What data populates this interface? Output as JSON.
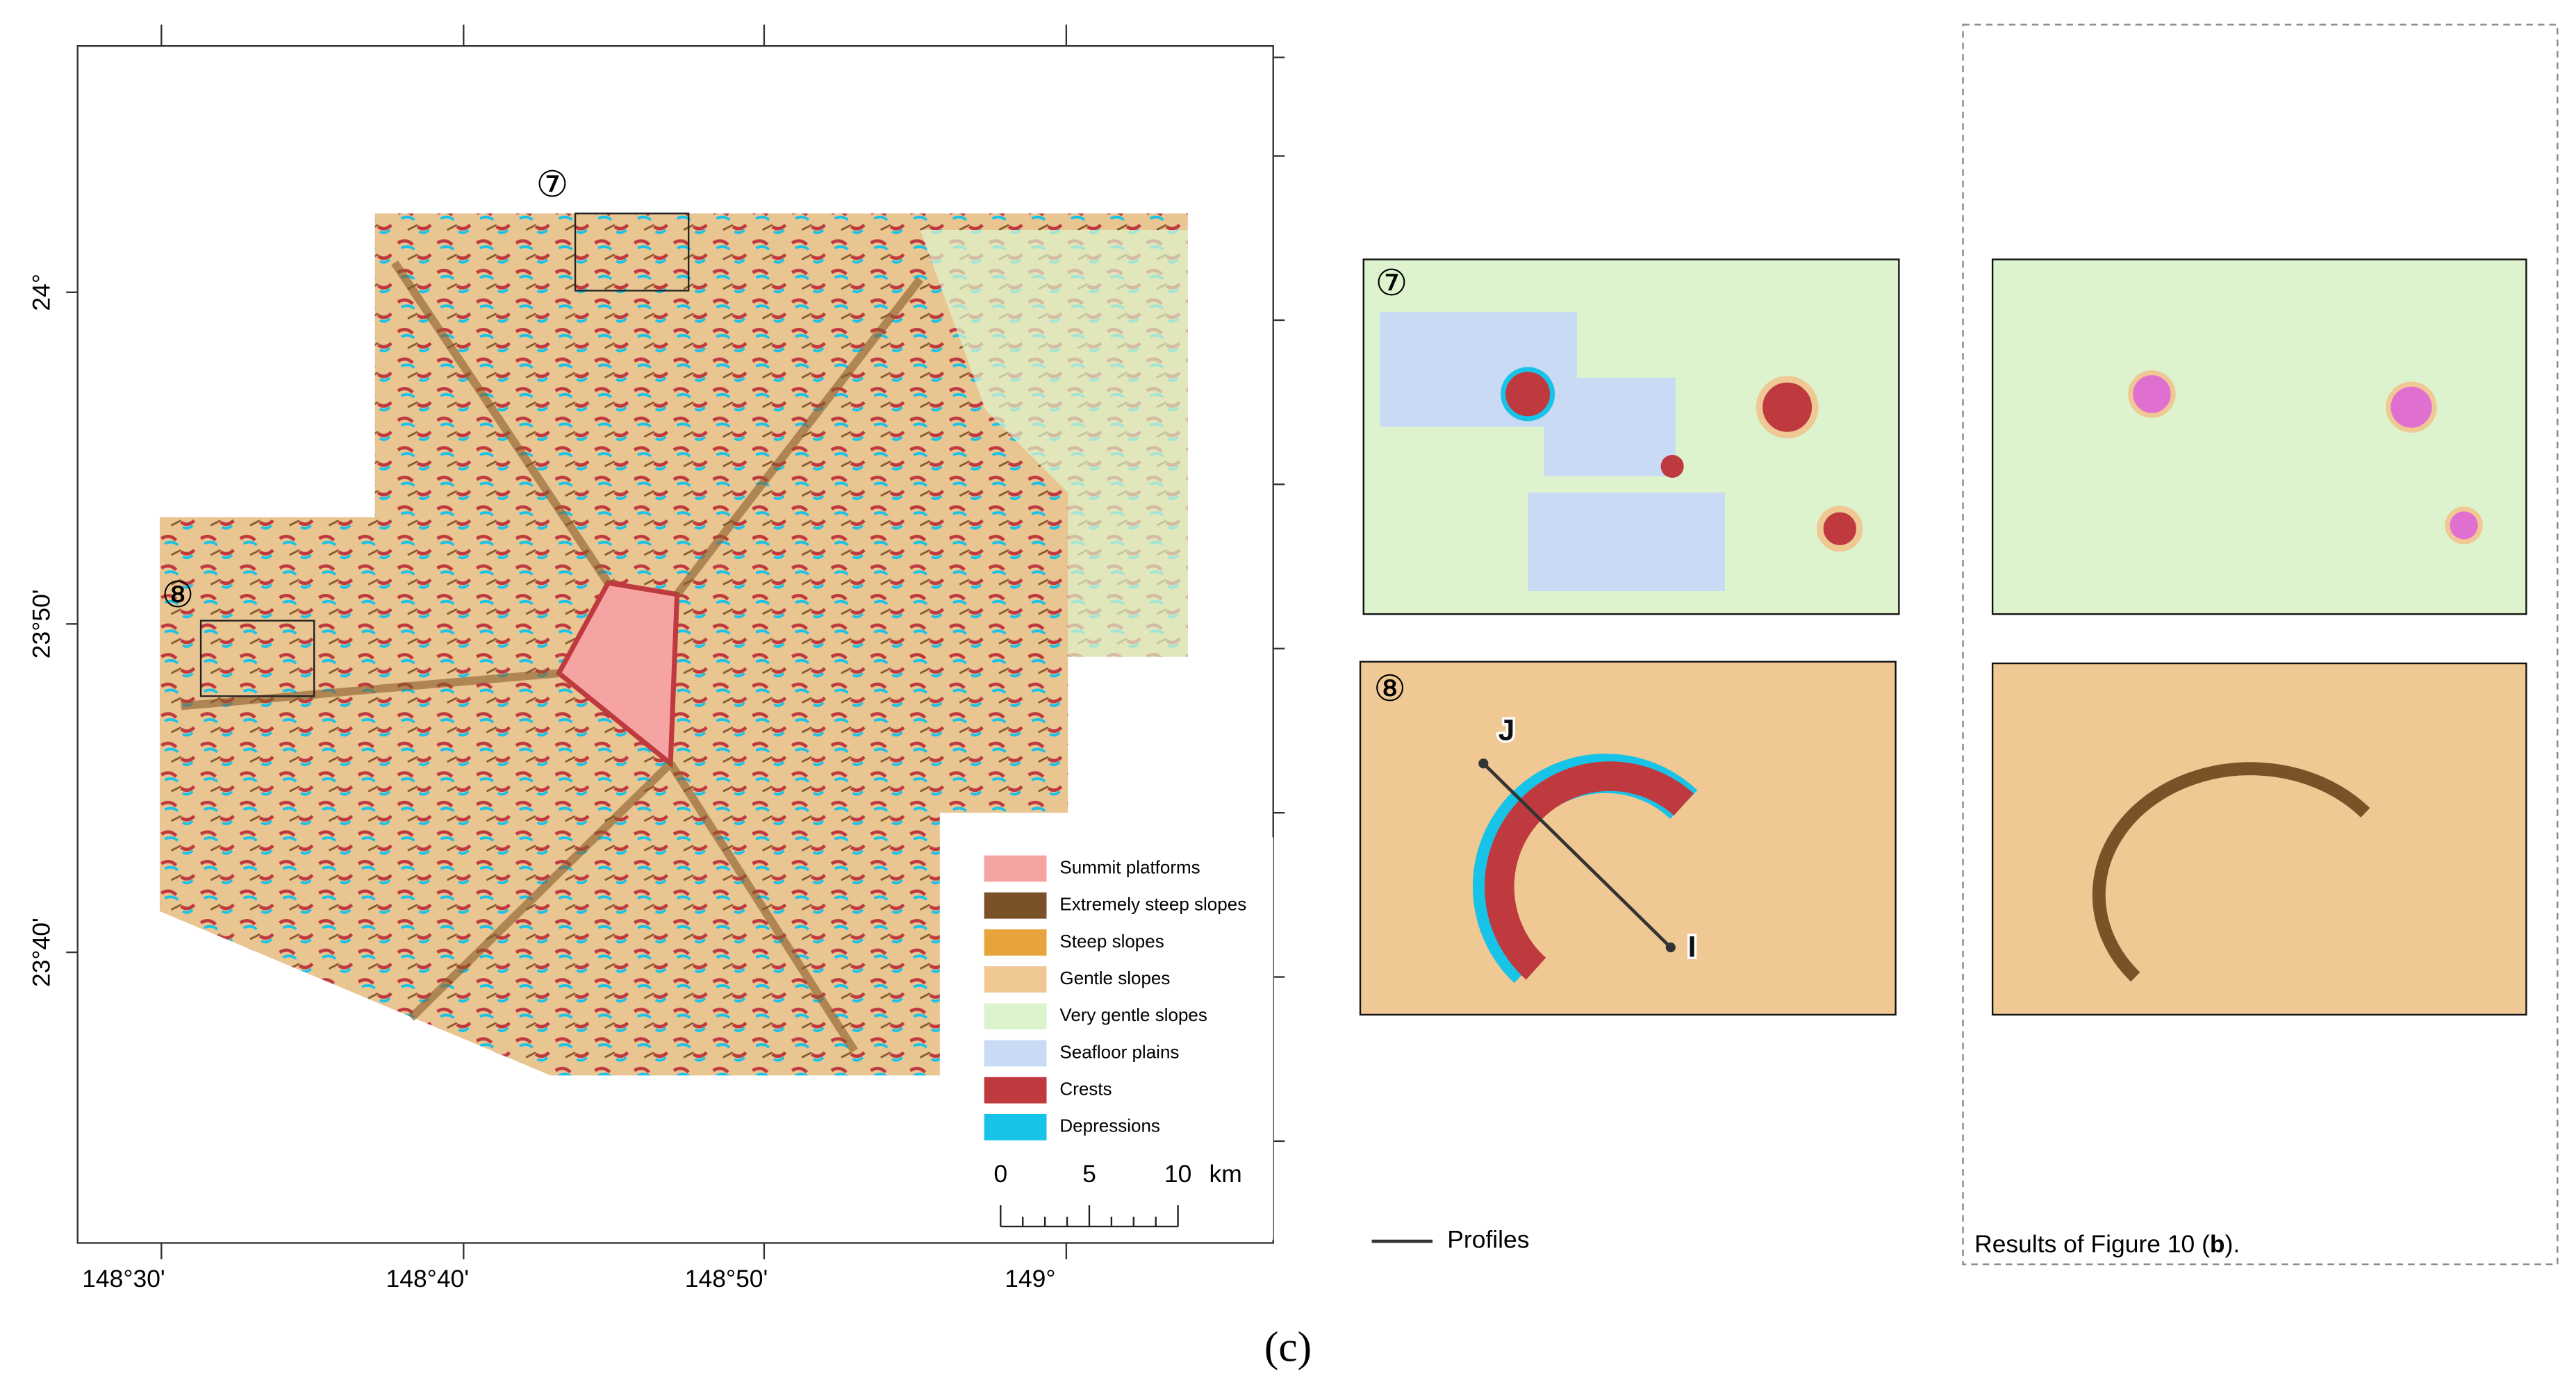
{
  "map": {
    "lon_labels": [
      "148°30'",
      "148°40'",
      "148°50'",
      "149°"
    ],
    "lat_labels": [
      "24°",
      "23°50'",
      "23°40'"
    ],
    "zone_labels": [
      "⑦",
      "⑧"
    ],
    "legend": [
      {
        "label": "Summit platforms",
        "color": "#f6a3a3"
      },
      {
        "label": "Extremely steep slopes",
        "color": "#7b5128"
      },
      {
        "label": "Steep slopes",
        "color": "#e8a43c"
      },
      {
        "label": "Gentle slopes",
        "color": "#efc894"
      },
      {
        "label": "Very gentle slopes",
        "color": "#ddf3cd"
      },
      {
        "label": "Seafloor plains",
        "color": "#c9daf5"
      },
      {
        "label": "Crests",
        "color": "#bf3a3f"
      },
      {
        "label": "Depressions",
        "color": "#18c3e8"
      }
    ],
    "scale_bar": {
      "labels": [
        "0",
        "5",
        "10"
      ],
      "unit": "km"
    }
  },
  "insets": {
    "zone_labels": [
      "⑦",
      "⑧"
    ],
    "profile_points": [
      "J",
      "I"
    ],
    "profiles_legend": "Profiles",
    "results_caption": [
      "Results of Figure 10 (",
      "b",
      ")."
    ]
  },
  "panel_label": "(c)"
}
